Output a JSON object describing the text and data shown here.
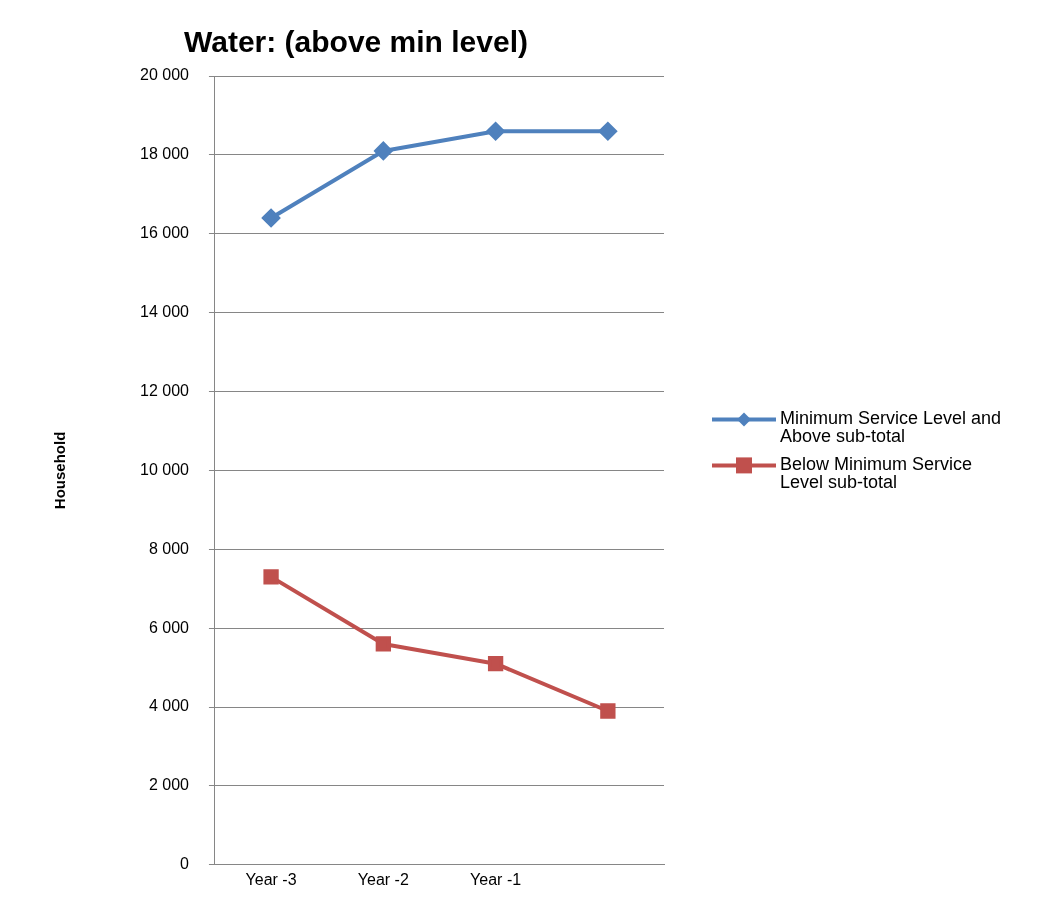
{
  "chart_data": {
    "type": "line",
    "title": "Water: (above min level)",
    "ylabel": "Household",
    "categories": [
      "Year -3",
      "Year -2",
      "Year -1",
      null
    ],
    "series": [
      {
        "name": "Minimum Service Level and Above sub-total",
        "color": "#4f81bd",
        "marker": "diamond",
        "values": [
          16400,
          18100,
          18600,
          18600
        ]
      },
      {
        "name": "Below Minimum Service Level sub-total",
        "color": "#c0504d",
        "marker": "square",
        "values": [
          7300,
          5600,
          5100,
          3900
        ]
      }
    ],
    "ylim": [
      0,
      20000
    ],
    "yticks": [
      {
        "value": 0,
        "label": "0"
      },
      {
        "value": 2000,
        "label": "2 000"
      },
      {
        "value": 4000,
        "label": "4 000"
      },
      {
        "value": 6000,
        "label": "6 000"
      },
      {
        "value": 8000,
        "label": "8 000"
      },
      {
        "value": 10000,
        "label": "10 000"
      },
      {
        "value": 12000,
        "label": "12 000"
      },
      {
        "value": 14000,
        "label": "14 000"
      },
      {
        "value": 16000,
        "label": "16 000"
      },
      {
        "value": 18000,
        "label": "18 000"
      },
      {
        "value": 20000,
        "label": "20 000"
      }
    ],
    "grid": "y",
    "legend": "right",
    "line_style": "solid"
  }
}
